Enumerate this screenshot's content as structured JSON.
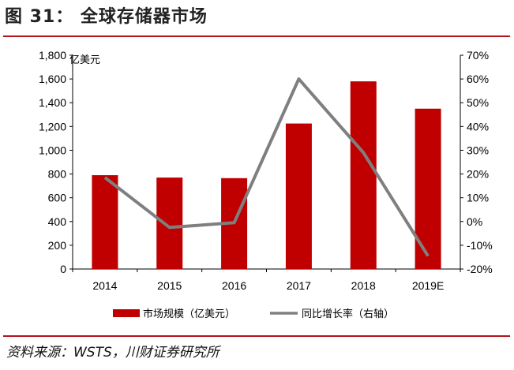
{
  "figure": {
    "title": "图 31：  全球存储器市场",
    "source": "资料来源：WSTS，川财证券研究所"
  },
  "chart_data": {
    "type": "bar",
    "categories": [
      "2014",
      "2015",
      "2016",
      "2017",
      "2018",
      "2019E"
    ],
    "y_left": {
      "unit": "亿美元",
      "range": [
        0,
        1800
      ],
      "ticks": [
        "0",
        "200",
        "400",
        "600",
        "800",
        "1,000",
        "1,200",
        "1,400",
        "1,600",
        "1,800"
      ]
    },
    "y_right": {
      "range": [
        -20,
        70
      ],
      "ticks": [
        "-20%",
        "-10%",
        "0%",
        "10%",
        "20%",
        "30%",
        "40%",
        "50%",
        "60%",
        "70%"
      ]
    },
    "series": [
      {
        "name": "市场规模（亿美元）",
        "type": "bar",
        "axis": "left",
        "color": "#c00000",
        "values": [
          790,
          770,
          765,
          1225,
          1580,
          1350
        ]
      },
      {
        "name": "同比增长率（右轴）",
        "type": "line",
        "axis": "right",
        "color": "#7f7f7f",
        "values": [
          18.5,
          -2.5,
          -0.5,
          60.0,
          29.0,
          -14.5
        ]
      }
    ],
    "legend_position": "bottom",
    "grid": false
  }
}
